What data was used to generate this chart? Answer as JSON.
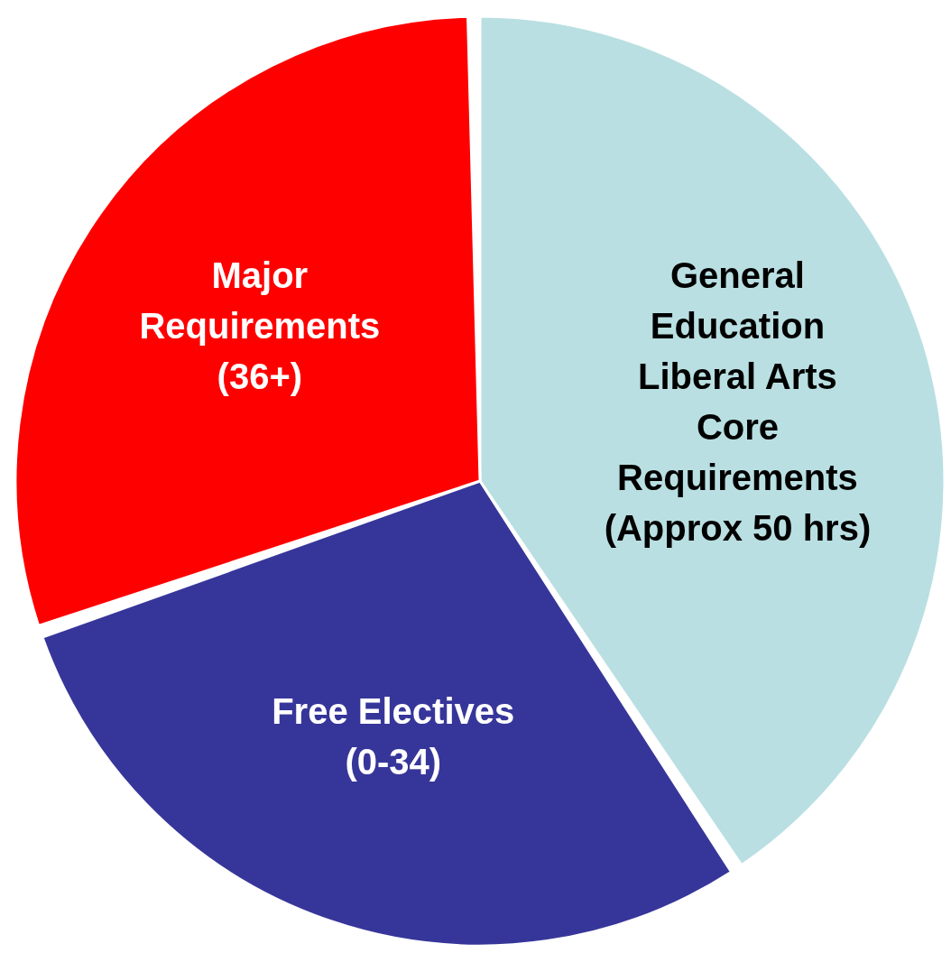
{
  "chart_data": {
    "type": "pie",
    "categories": [
      "General Education Liberal Arts Core Requirements (Approx 50 hrs)",
      "Free Electives (0-34)",
      "Major Requirements (36+)"
    ],
    "values": [
      41,
      29,
      30
    ],
    "colors": [
      "#b9dfe2",
      "#36369a",
      "#fe0000"
    ]
  }
}
